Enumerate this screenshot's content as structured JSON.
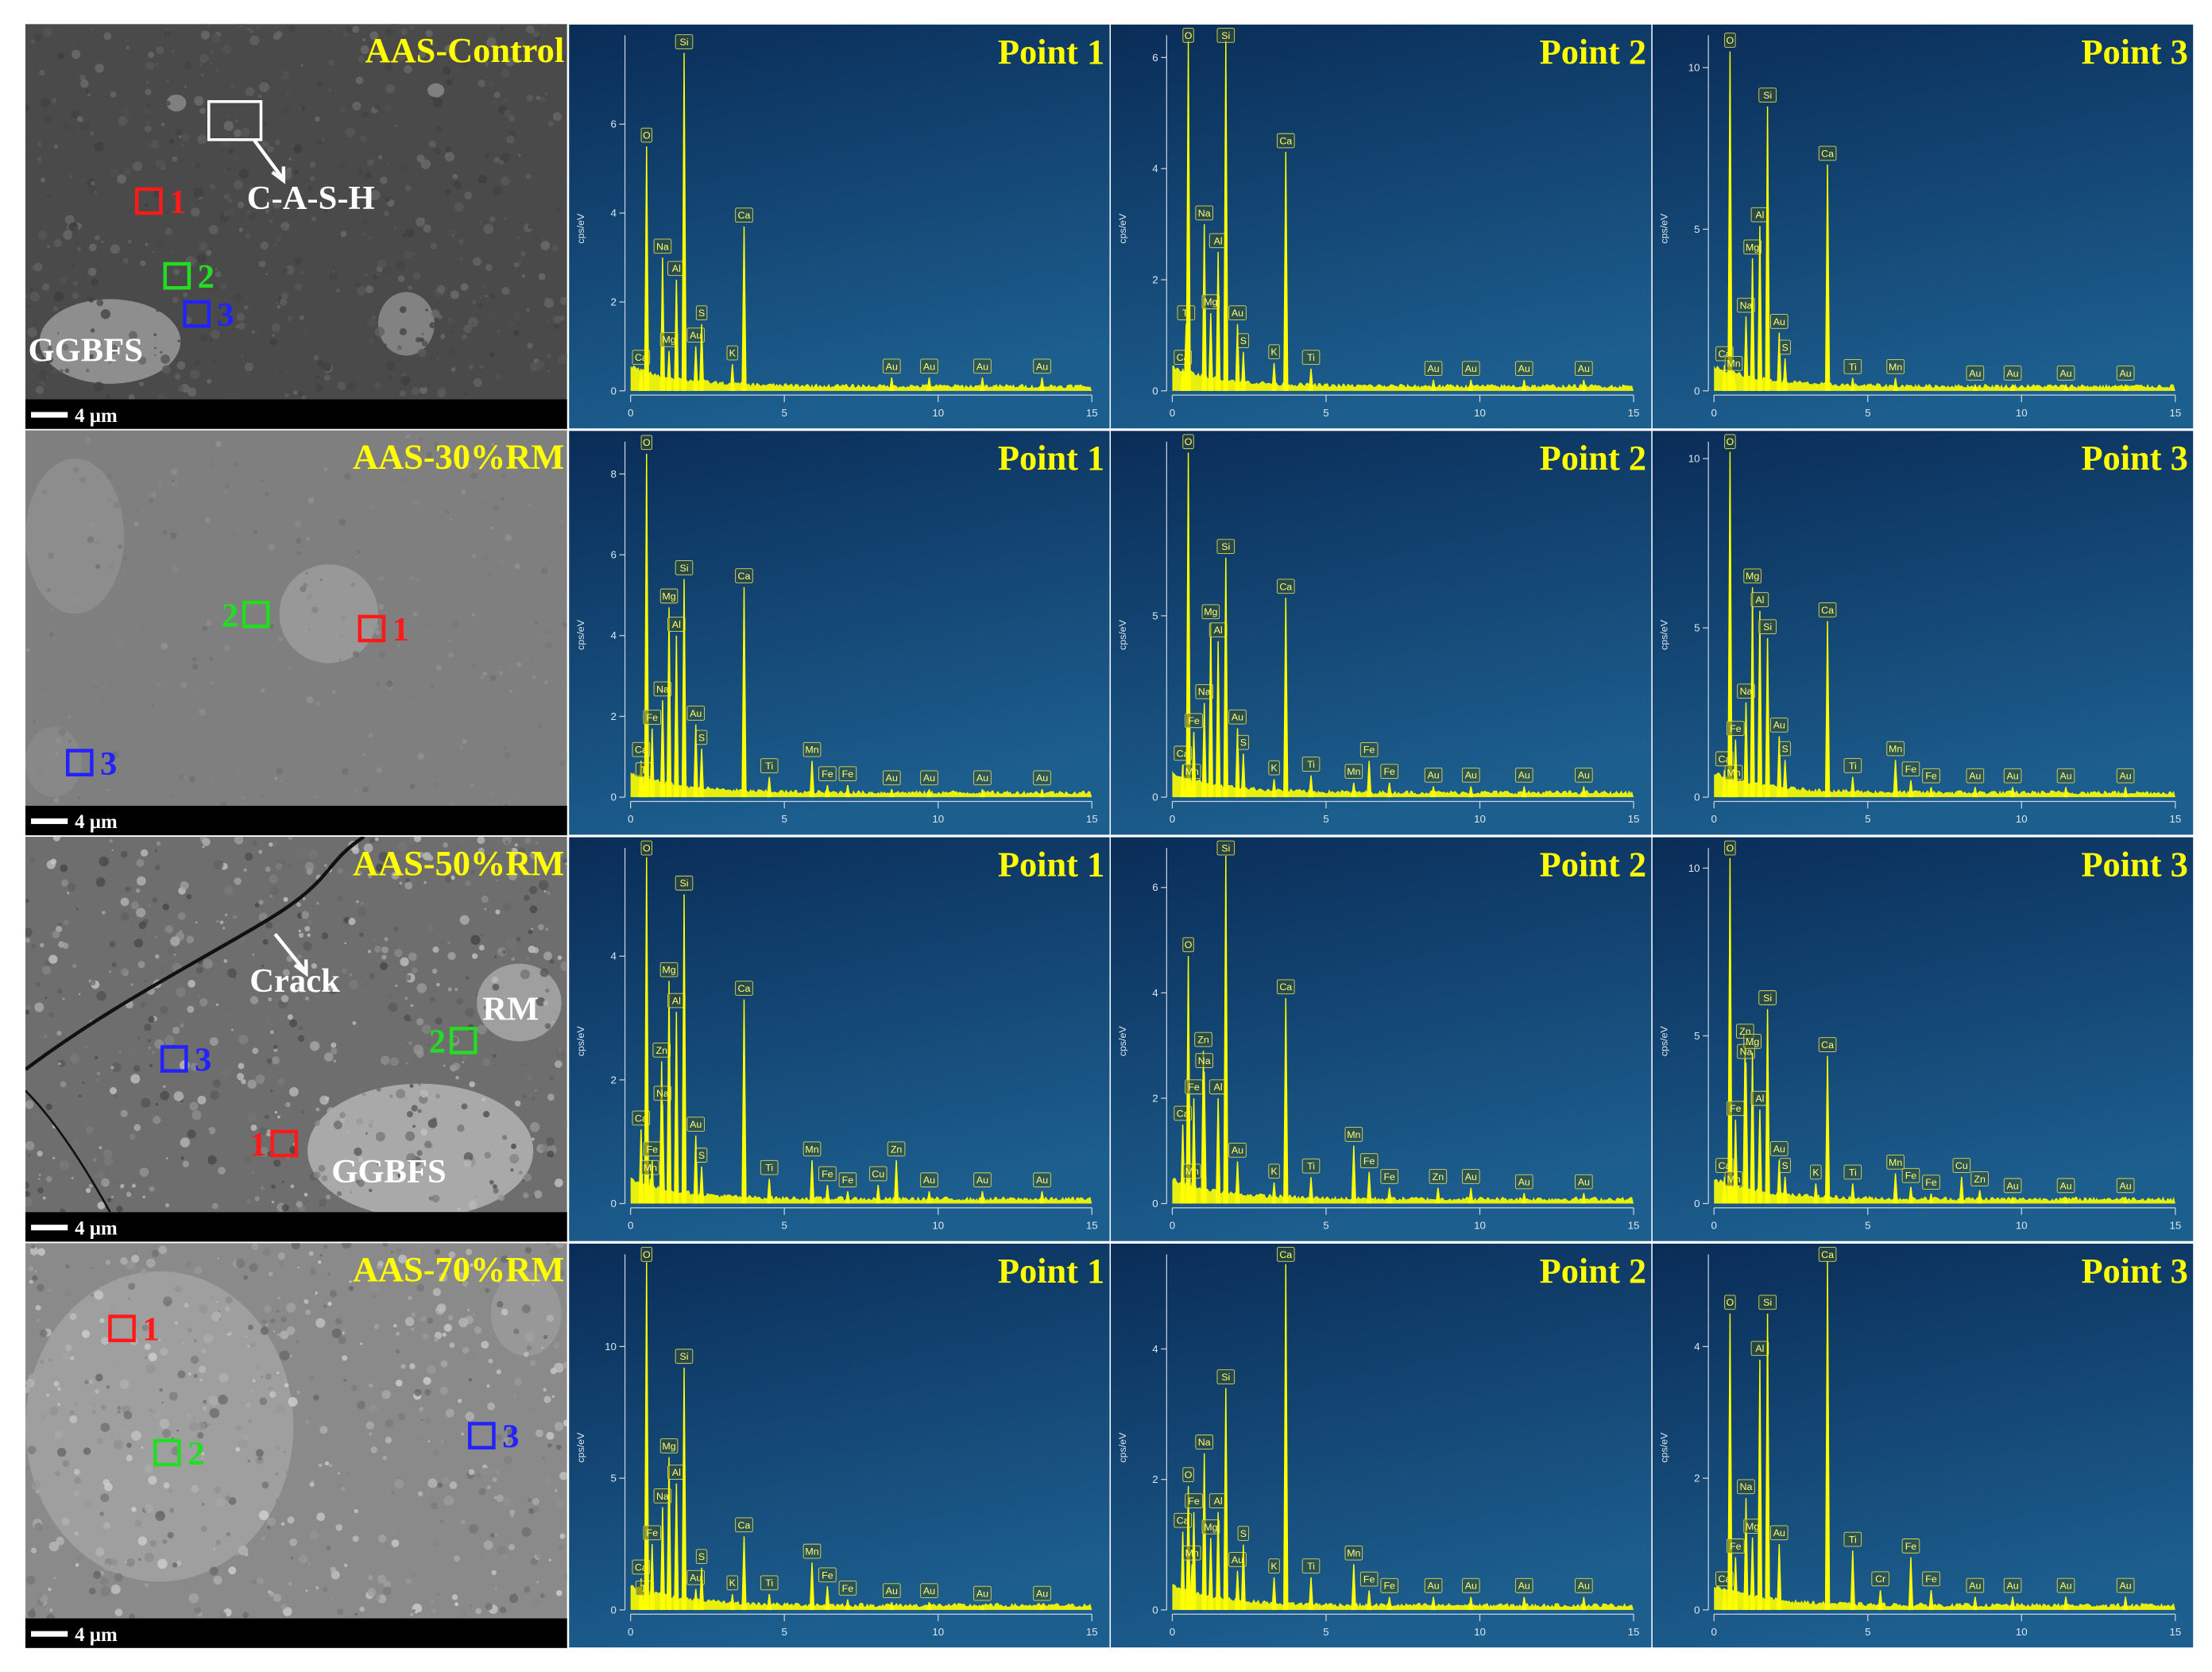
{
  "micrographs": [
    {
      "title": "AAS-Control",
      "scale_bar": "4 µm",
      "markers": [
        {
          "label": "1",
          "color": "#ff1a1a"
        },
        {
          "label": "2",
          "color": "#22dd22"
        },
        {
          "label": "3",
          "color": "#2222ff"
        }
      ],
      "notes": [
        "C-A-S-H",
        "GGBFS"
      ]
    },
    {
      "title": "AAS-30%RM",
      "scale_bar": "4 µm",
      "markers": [
        {
          "label": "1",
          "color": "#ff1a1a"
        },
        {
          "label": "2",
          "color": "#22dd22"
        },
        {
          "label": "3",
          "color": "#2222ff"
        }
      ]
    },
    {
      "title": "AAS-50%RM",
      "scale_bar": "4 µm",
      "markers": [
        {
          "label": "1",
          "color": "#ff1a1a"
        },
        {
          "label": "2",
          "color": "#22dd22"
        },
        {
          "label": "3",
          "color": "#2222ff"
        }
      ],
      "notes": [
        "Crack",
        "RM",
        "GGBFS"
      ]
    },
    {
      "title": "AAS-70%RM",
      "scale_bar": "4 µm",
      "markers": [
        {
          "label": "1",
          "color": "#ff1a1a"
        },
        {
          "label": "2",
          "color": "#22dd22"
        },
        {
          "label": "3",
          "color": "#2222ff"
        }
      ]
    }
  ],
  "chart_data": [
    {
      "type": "spectrum",
      "title": "Point 1",
      "ylabel": "cps/eV",
      "color": "#ffff00",
      "xlim": [
        0,
        15
      ],
      "xticks": [
        0,
        5,
        10,
        15
      ],
      "ylim": [
        0,
        8
      ],
      "yticks": [
        0,
        2,
        4,
        6
      ],
      "categories": [
        "Ca",
        "O",
        "Na",
        "Mg",
        "Al",
        "Si",
        "Au",
        "S",
        "K",
        "Ca",
        "Au",
        "Au",
        "Au",
        "Au"
      ],
      "x": [
        0.34,
        0.52,
        1.04,
        1.25,
        1.49,
        1.74,
        2.12,
        2.31,
        3.31,
        3.69,
        8.49,
        9.71,
        11.44,
        13.38
      ],
      "values": [
        0.5,
        5.5,
        3.0,
        0.9,
        2.5,
        7.6,
        1.0,
        1.5,
        0.6,
        3.7,
        0.3,
        0.3,
        0.3,
        0.3
      ]
    },
    {
      "type": "spectrum",
      "title": "Point 2",
      "ylabel": "cps/eV",
      "color": "#ffff00",
      "xlim": [
        0,
        15
      ],
      "xticks": [
        0,
        5,
        10,
        15
      ],
      "ylim": [
        0,
        6.4
      ],
      "yticks": [
        0,
        2,
        4,
        6
      ],
      "categories": [
        "Ca",
        "Ti",
        "O",
        "Na",
        "Mg",
        "Al",
        "Si",
        "Au",
        "S",
        "K",
        "Ca",
        "Ti",
        "Au",
        "Au",
        "Au",
        "Au"
      ],
      "x": [
        0.34,
        0.45,
        0.52,
        1.04,
        1.25,
        1.49,
        1.74,
        2.12,
        2.31,
        3.31,
        3.69,
        4.51,
        8.49,
        9.71,
        11.44,
        13.38
      ],
      "values": [
        0.4,
        1.2,
        6.3,
        3.0,
        1.4,
        2.5,
        6.3,
        1.2,
        0.7,
        0.5,
        4.3,
        0.4,
        0.2,
        0.2,
        0.2,
        0.2
      ]
    },
    {
      "type": "spectrum",
      "title": "Point 3",
      "ylabel": "cps/eV",
      "color": "#ffff00",
      "xlim": [
        0,
        15
      ],
      "xticks": [
        0,
        5,
        10,
        15
      ],
      "ylim": [
        0,
        11
      ],
      "yticks": [
        0,
        5,
        10
      ],
      "categories": [
        "Ca",
        "O",
        "Mn",
        "Na",
        "Mg",
        "Al",
        "Si",
        "Au",
        "S",
        "Ca",
        "Ti",
        "Mn",
        "Au",
        "Au",
        "Au",
        "Au"
      ],
      "x": [
        0.34,
        0.52,
        0.64,
        1.04,
        1.25,
        1.49,
        1.74,
        2.12,
        2.31,
        3.69,
        4.51,
        5.9,
        8.49,
        9.71,
        11.44,
        13.38
      ],
      "values": [
        0.8,
        10.5,
        0.5,
        2.3,
        4.1,
        5.1,
        8.8,
        1.8,
        1.0,
        7.0,
        0.4,
        0.4,
        0.2,
        0.2,
        0.2,
        0.2
      ]
    },
    {
      "type": "spectrum",
      "title": "Point 1",
      "ylabel": "cps/eV",
      "color": "#ffff00",
      "xlim": [
        0,
        15
      ],
      "xticks": [
        0,
        5,
        10,
        15
      ],
      "ylim": [
        0,
        8.8
      ],
      "yticks": [
        0,
        2,
        4,
        6,
        8
      ],
      "categories": [
        "Ca",
        "Ti",
        "O",
        "Fe",
        "Na",
        "Mg",
        "Al",
        "Si",
        "Au",
        "S",
        "Ca",
        "Ti",
        "Mn",
        "Fe",
        "Fe",
        "Au",
        "Au",
        "Au",
        "Au"
      ],
      "x": [
        0.34,
        0.45,
        0.52,
        0.7,
        1.04,
        1.25,
        1.49,
        1.74,
        2.12,
        2.31,
        3.69,
        4.51,
        5.9,
        6.4,
        7.06,
        8.49,
        9.71,
        11.44,
        13.38
      ],
      "values": [
        0.9,
        0.4,
        8.5,
        1.7,
        2.4,
        4.7,
        4.0,
        5.4,
        1.8,
        1.2,
        5.2,
        0.5,
        0.9,
        0.3,
        0.3,
        0.2,
        0.2,
        0.2,
        0.2
      ]
    },
    {
      "type": "spectrum",
      "title": "Point 2",
      "ylabel": "cps/eV",
      "color": "#ffff00",
      "xlim": [
        0,
        15
      ],
      "xticks": [
        0,
        5,
        10,
        15
      ],
      "ylim": [
        0,
        9.8
      ],
      "yticks": [
        0,
        5
      ],
      "categories": [
        "Ca",
        "O",
        "Mn",
        "Fe",
        "Na",
        "Mg",
        "Al",
        "Si",
        "Au",
        "S",
        "K",
        "Ca",
        "Ti",
        "Mn",
        "Fe",
        "Fe",
        "Au",
        "Au",
        "Au",
        "Au"
      ],
      "x": [
        0.34,
        0.52,
        0.64,
        0.7,
        1.04,
        1.25,
        1.49,
        1.74,
        2.12,
        2.31,
        3.31,
        3.69,
        4.51,
        5.9,
        6.4,
        7.06,
        8.49,
        9.71,
        11.44,
        13.38
      ],
      "values": [
        0.9,
        9.5,
        0.4,
        1.8,
        2.6,
        4.8,
        4.3,
        6.6,
        1.9,
        1.2,
        0.5,
        5.5,
        0.6,
        0.4,
        1.0,
        0.4,
        0.3,
        0.3,
        0.3,
        0.3
      ]
    },
    {
      "type": "spectrum",
      "title": "Point 3",
      "ylabel": "cps/eV",
      "color": "#ffff00",
      "xlim": [
        0,
        15
      ],
      "xticks": [
        0,
        5,
        10,
        15
      ],
      "ylim": [
        0,
        10.5
      ],
      "yticks": [
        0,
        5,
        10
      ],
      "categories": [
        "Ca",
        "O",
        "Mn",
        "Fe",
        "Na",
        "Mg",
        "Al",
        "Si",
        "Au",
        "S",
        "Ca",
        "Ti",
        "Mn",
        "Fe",
        "Fe",
        "Au",
        "Au",
        "Au",
        "Au"
      ],
      "x": [
        0.34,
        0.52,
        0.64,
        0.7,
        1.04,
        1.25,
        1.49,
        1.74,
        2.12,
        2.31,
        3.69,
        4.51,
        5.9,
        6.4,
        7.06,
        8.49,
        9.71,
        11.44,
        13.38
      ],
      "values": [
        0.8,
        10.2,
        0.4,
        1.7,
        2.8,
        6.2,
        5.5,
        4.7,
        1.8,
        1.1,
        5.2,
        0.6,
        1.1,
        0.5,
        0.3,
        0.3,
        0.3,
        0.3,
        0.3
      ]
    },
    {
      "type": "spectrum",
      "title": "Point 1",
      "ylabel": "cps/eV",
      "color": "#ffff00",
      "xlim": [
        0,
        15
      ],
      "xticks": [
        0,
        5,
        10,
        15
      ],
      "ylim": [
        0,
        5.75
      ],
      "yticks": [
        0,
        2,
        4
      ],
      "categories": [
        "Ca",
        "O",
        "Mn",
        "Fe",
        "Zn",
        "Na",
        "Mg",
        "Al",
        "Si",
        "Au",
        "S",
        "Ca",
        "Ti",
        "Mn",
        "Fe",
        "Fe",
        "Cu",
        "Zn",
        "Au",
        "Au",
        "Au"
      ],
      "x": [
        0.34,
        0.52,
        0.64,
        0.7,
        1.01,
        1.04,
        1.25,
        1.49,
        1.74,
        2.12,
        2.31,
        3.69,
        4.51,
        5.9,
        6.4,
        7.06,
        8.05,
        8.64,
        9.71,
        11.44,
        13.38
      ],
      "values": [
        1.2,
        5.6,
        0.4,
        0.7,
        2.3,
        1.6,
        3.6,
        3.1,
        5.0,
        1.1,
        0.6,
        3.3,
        0.4,
        0.7,
        0.3,
        0.2,
        0.3,
        0.7,
        0.2,
        0.2,
        0.2
      ]
    },
    {
      "type": "spectrum",
      "title": "Point 2",
      "ylabel": "cps/eV",
      "color": "#ffff00",
      "xlim": [
        0,
        15
      ],
      "xticks": [
        0,
        5,
        10,
        15
      ],
      "ylim": [
        0,
        6.75
      ],
      "yticks": [
        0,
        2,
        4,
        6
      ],
      "categories": [
        "Ca",
        "O",
        "Mn",
        "Fe",
        "Zn",
        "Na",
        "Al",
        "Si",
        "Au",
        "K",
        "Ca",
        "Ti",
        "Mn",
        "Fe",
        "Fe",
        "Zn",
        "Au",
        "Au",
        "Au"
      ],
      "x": [
        0.34,
        0.52,
        0.64,
        0.7,
        1.01,
        1.04,
        1.49,
        1.74,
        2.12,
        3.31,
        3.69,
        4.51,
        5.9,
        6.4,
        7.06,
        8.64,
        9.71,
        11.44,
        13.38
      ],
      "values": [
        1.5,
        4.7,
        0.4,
        2.0,
        2.9,
        2.5,
        2.0,
        6.6,
        0.8,
        0.4,
        3.9,
        0.5,
        1.1,
        0.6,
        0.3,
        0.3,
        0.3,
        0.2,
        0.2
      ]
    },
    {
      "type": "spectrum",
      "title": "Point 3",
      "ylabel": "cps/eV",
      "color": "#ffff00",
      "xlim": [
        0,
        15
      ],
      "xticks": [
        0,
        5,
        10,
        15
      ],
      "ylim": [
        0,
        10.6
      ],
      "yticks": [
        0,
        5,
        10
      ],
      "categories": [
        "Ca",
        "O",
        "Mn",
        "Fe",
        "Zn",
        "Na",
        "Mg",
        "Al",
        "Si",
        "Au",
        "S",
        "K",
        "Ca",
        "Ti",
        "Mn",
        "Fe",
        "Fe",
        "Cu",
        "Zn",
        "Au",
        "Au",
        "Au"
      ],
      "x": [
        0.34,
        0.52,
        0.64,
        0.7,
        1.01,
        1.04,
        1.25,
        1.49,
        1.74,
        2.12,
        2.31,
        3.31,
        3.69,
        4.51,
        5.9,
        6.4,
        7.06,
        8.05,
        8.64,
        9.71,
        11.44,
        13.38
      ],
      "values": [
        0.8,
        10.3,
        0.4,
        2.5,
        4.8,
        4.2,
        4.5,
        2.8,
        5.8,
        1.3,
        0.8,
        0.6,
        4.4,
        0.6,
        0.9,
        0.5,
        0.3,
        0.8,
        0.4,
        0.2,
        0.2,
        0.2
      ]
    },
    {
      "type": "spectrum",
      "title": "Point 1",
      "ylabel": "cps/eV",
      "color": "#ffff00",
      "xlim": [
        0,
        15
      ],
      "xticks": [
        0,
        5,
        10,
        15
      ],
      "ylim": [
        0,
        13.5
      ],
      "yticks": [
        0,
        5,
        10
      ],
      "categories": [
        "Ca",
        "Ti",
        "O",
        "Fe",
        "Na",
        "Mg",
        "Al",
        "Si",
        "Au",
        "S",
        "K",
        "Ca",
        "Ti",
        "Mn",
        "Fe",
        "Fe",
        "Au",
        "Au",
        "Au",
        "Au"
      ],
      "x": [
        0.34,
        0.45,
        0.52,
        0.7,
        1.04,
        1.25,
        1.49,
        1.74,
        2.12,
        2.31,
        3.31,
        3.69,
        4.51,
        5.9,
        6.4,
        7.06,
        8.49,
        9.71,
        11.44,
        13.38
      ],
      "values": [
        1.2,
        0.4,
        13.2,
        2.5,
        3.9,
        5.8,
        4.8,
        9.2,
        0.8,
        1.6,
        0.6,
        2.8,
        0.6,
        1.8,
        0.9,
        0.4,
        0.3,
        0.3,
        0.2,
        0.2
      ]
    },
    {
      "type": "spectrum",
      "title": "Point 2",
      "ylabel": "cps/eV",
      "color": "#ffff00",
      "xlim": [
        0,
        15
      ],
      "xticks": [
        0,
        5,
        10,
        15
      ],
      "ylim": [
        0,
        5.45
      ],
      "yticks": [
        0,
        2,
        4
      ],
      "categories": [
        "Ca",
        "O",
        "Mn",
        "Fe",
        "Na",
        "Mg",
        "Al",
        "Si",
        "Au",
        "S",
        "K",
        "Ca",
        "Ti",
        "Mn",
        "Fe",
        "Fe",
        "Au",
        "Au",
        "Au",
        "Au"
      ],
      "x": [
        0.34,
        0.52,
        0.64,
        0.7,
        1.04,
        1.25,
        1.49,
        1.74,
        2.12,
        2.31,
        3.31,
        3.69,
        4.51,
        5.9,
        6.4,
        7.06,
        8.49,
        9.71,
        11.44,
        13.38
      ],
      "values": [
        1.2,
        1.9,
        0.7,
        1.5,
        2.4,
        1.1,
        1.5,
        3.4,
        0.6,
        1.0,
        0.5,
        5.3,
        0.5,
        0.7,
        0.3,
        0.2,
        0.2,
        0.2,
        0.2,
        0.2
      ]
    },
    {
      "type": "spectrum",
      "title": "Point 3",
      "ylabel": "cps/eV",
      "color": "#ffff00",
      "xlim": [
        0,
        15
      ],
      "xticks": [
        0,
        5,
        10,
        15
      ],
      "ylim": [
        0,
        5.4
      ],
      "yticks": [
        0,
        2,
        4
      ],
      "categories": [
        "Ca",
        "O",
        "Fe",
        "Na",
        "Mg",
        "Al",
        "Si",
        "Au",
        "Ca",
        "Ti",
        "Cr",
        "Fe",
        "Fe",
        "Au",
        "Au",
        "Au",
        "Au"
      ],
      "x": [
        0.34,
        0.52,
        0.7,
        1.04,
        1.25,
        1.49,
        1.74,
        2.12,
        3.69,
        4.51,
        5.41,
        6.4,
        7.06,
        8.49,
        9.71,
        11.44,
        13.38
      ],
      "values": [
        0.3,
        4.5,
        0.8,
        1.7,
        1.1,
        3.8,
        4.5,
        1.0,
        5.3,
        0.9,
        0.3,
        0.8,
        0.3,
        0.2,
        0.2,
        0.2,
        0.2
      ]
    }
  ]
}
